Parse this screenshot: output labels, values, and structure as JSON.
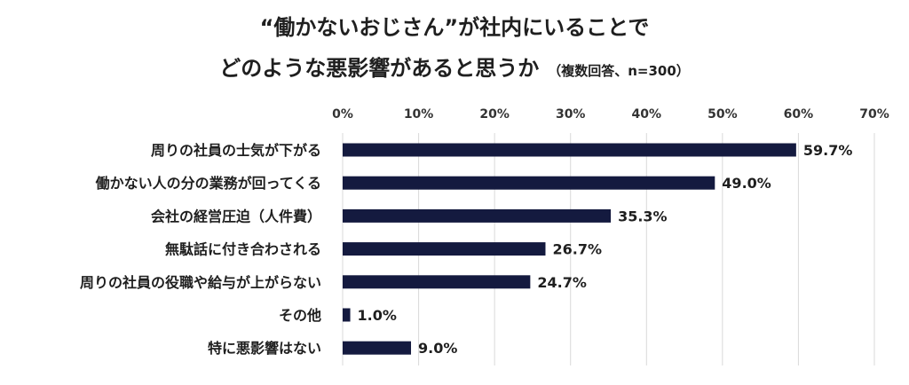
{
  "title": {
    "line1": "“働かないおじさん”が社内にいることで",
    "line2": "どのような悪影響があると思うか",
    "note": "（複数回答、n=300）"
  },
  "colors": {
    "bar": "#141a3f",
    "grid": "#d9d9d9",
    "text": "#1f1f1f"
  },
  "chart_data": {
    "type": "bar",
    "orientation": "horizontal",
    "title": "“働かないおじさん”が社内にいることで どのような悪影響があると思うか（複数回答、n=300）",
    "categories": [
      "周りの社員の士気が下がる",
      "働かない人の分の業務が回ってくる",
      "会社の経営圧迫（人件費）",
      "無駄話に付き合わされる",
      "周りの社員の役職や給与が上がらない",
      "その他",
      "特に悪影響はない"
    ],
    "values": [
      59.7,
      49.0,
      35.3,
      26.7,
      24.7,
      1.0,
      9.0
    ],
    "value_labels": [
      "59.7%",
      "49.0%",
      "35.3%",
      "26.7%",
      "24.7%",
      "1.0%",
      "9.0%"
    ],
    "xlim": [
      0,
      70
    ],
    "x_ticks": [
      0,
      10,
      20,
      30,
      40,
      50,
      60,
      70
    ],
    "x_tick_labels": [
      "0%",
      "10%",
      "20%",
      "30%",
      "40%",
      "50%",
      "60%",
      "70%"
    ],
    "axis_position": "top",
    "grid": true,
    "legend": false
  }
}
